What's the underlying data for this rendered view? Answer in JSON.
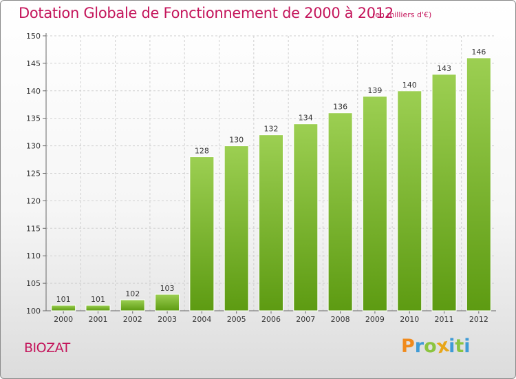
{
  "title": "Dotation Globale de Fonctionnement de 2000 à 2012",
  "unit_note": "(en milliers d'€)",
  "commune": "BIOZAT",
  "logo": {
    "letters": [
      "P",
      "r",
      "o",
      "x",
      "i",
      "t",
      "i"
    ],
    "colors": [
      "#f08a1c",
      "#3f9bd6",
      "#8bc43f",
      "#e8a619",
      "#3f9bd6",
      "#8bc43f",
      "#3f9bd6"
    ]
  },
  "colors": {
    "accent": "#c4155b",
    "bar_top": "#9ccf52",
    "bar_bottom": "#5d9b12"
  },
  "chart_data": {
    "type": "bar",
    "categories": [
      "2000",
      "2001",
      "2002",
      "2003",
      "2004",
      "2005",
      "2006",
      "2007",
      "2008",
      "2009",
      "2010",
      "2011",
      "2012"
    ],
    "values": [
      101,
      101,
      102,
      103,
      128,
      130,
      132,
      134,
      136,
      139,
      140,
      143,
      146
    ],
    "ylim": [
      100,
      150
    ],
    "yticks": [
      100,
      105,
      110,
      115,
      120,
      125,
      130,
      135,
      140,
      145,
      150
    ],
    "grid": true,
    "data_labels": true
  }
}
